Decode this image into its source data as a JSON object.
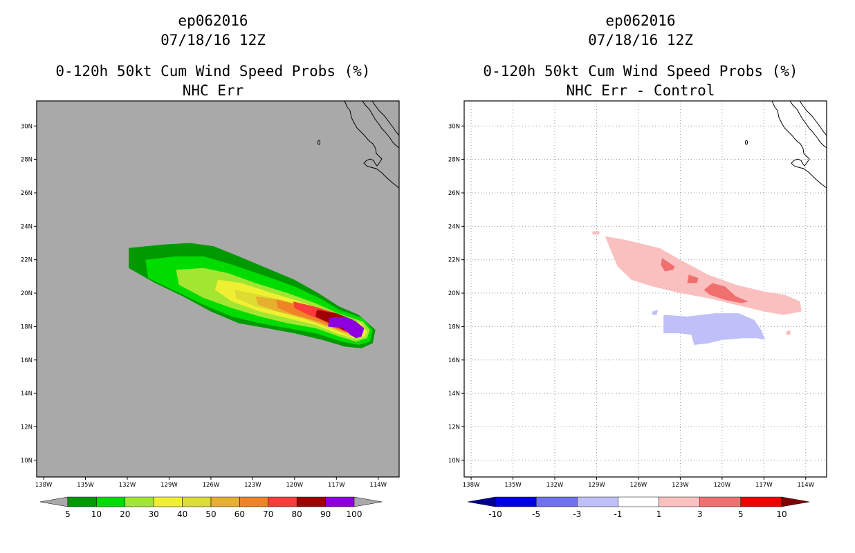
{
  "chart_data": [
    {
      "type": "filled-contour-map",
      "storm_id": "ep062016",
      "datetime": "07/18/16 12Z",
      "title": "0-120h 50kt Cum Wind Speed Probs (%)",
      "subtitle": "NHC Err",
      "xlim": [
        -138.5,
        -112.5
      ],
      "ylim": [
        9,
        31.5
      ],
      "x_ticks": [
        -138,
        -135,
        -132,
        -129,
        -126,
        -123,
        -120,
        -117,
        -114
      ],
      "x_tick_labels": [
        "138W",
        "135W",
        "132W",
        "129W",
        "126W",
        "123W",
        "120W",
        "117W",
        "114W"
      ],
      "y_ticks": [
        10,
        12,
        14,
        16,
        18,
        20,
        22,
        24,
        26,
        28,
        30
      ],
      "y_tick_labels": [
        "10N",
        "12N",
        "14N",
        "16N",
        "18N",
        "20N",
        "22N",
        "24N",
        "26N",
        "28N",
        "30N"
      ],
      "grid": false,
      "background_color": "#a9a9a9",
      "colorbar": {
        "levels": [
          "5",
          "10",
          "20",
          "30",
          "40",
          "50",
          "60",
          "70",
          "80",
          "90",
          "100"
        ],
        "colors": [
          "#009a00",
          "#00dc00",
          "#a2e632",
          "#f0f032",
          "#dcdc32",
          "#e6af2d",
          "#f08228",
          "#fa3c3c",
          "#a00000",
          "#8c00e0"
        ],
        "under_color": "#a9a9a9",
        "over_color": "#a9a9a9"
      },
      "contours": [
        {
          "level": 5,
          "color": "#009a00",
          "points": [
            [
              -131.9,
              22.7
            ],
            [
              -129.5,
              22.9
            ],
            [
              -127.5,
              23.0
            ],
            [
              -125.8,
              22.8
            ],
            [
              -124,
              22.2
            ],
            [
              -122,
              21.5
            ],
            [
              -120,
              20.8
            ],
            [
              -118.3,
              20.0
            ],
            [
              -116.8,
              19.2
            ],
            [
              -115.4,
              18.7
            ],
            [
              -114.2,
              17.8
            ],
            [
              -114.4,
              17.0
            ],
            [
              -115.2,
              16.7
            ],
            [
              -116.4,
              16.8
            ],
            [
              -118,
              17.2
            ],
            [
              -120,
              17.6
            ],
            [
              -122,
              17.9
            ],
            [
              -124,
              18.2
            ],
            [
              -126,
              18.9
            ],
            [
              -128,
              19.8
            ],
            [
              -130,
              20.6
            ],
            [
              -131.9,
              21.5
            ]
          ]
        },
        {
          "level": 10,
          "color": "#00dc00",
          "points": [
            [
              -130.7,
              22.0
            ],
            [
              -128.5,
              22.2
            ],
            [
              -126.5,
              22.2
            ],
            [
              -124.5,
              21.7
            ],
            [
              -122,
              21.0
            ],
            [
              -120,
              20.4
            ],
            [
              -118.2,
              19.7
            ],
            [
              -116.8,
              19.0
            ],
            [
              -115.1,
              18.5
            ],
            [
              -114.4,
              17.8
            ],
            [
              -114.6,
              17.1
            ],
            [
              -115.4,
              16.9
            ],
            [
              -116.6,
              17.1
            ],
            [
              -118.5,
              17.6
            ],
            [
              -120.5,
              17.9
            ],
            [
              -122.5,
              18.2
            ],
            [
              -124.5,
              18.6
            ],
            [
              -126.5,
              19.3
            ],
            [
              -128.5,
              20.1
            ],
            [
              -130.5,
              20.9
            ]
          ]
        },
        {
          "level": 20,
          "color": "#a2e632",
          "points": [
            [
              -128.5,
              21.4
            ],
            [
              -126.5,
              21.5
            ],
            [
              -124.8,
              21.2
            ],
            [
              -122.8,
              20.6
            ],
            [
              -120.5,
              20.0
            ],
            [
              -118.5,
              19.4
            ],
            [
              -116.9,
              18.8
            ],
            [
              -115.1,
              18.3
            ],
            [
              -114.6,
              17.8
            ],
            [
              -114.8,
              17.3
            ],
            [
              -115.6,
              17.1
            ],
            [
              -116.8,
              17.4
            ],
            [
              -118.5,
              17.9
            ],
            [
              -120.5,
              18.2
            ],
            [
              -122.5,
              18.6
            ],
            [
              -124.5,
              19.1
            ],
            [
              -126.5,
              19.7
            ],
            [
              -128.3,
              20.5
            ]
          ]
        },
        {
          "level": 30,
          "color": "#f0f032",
          "points": [
            [
              -125.5,
              20.8
            ],
            [
              -123.8,
              20.6
            ],
            [
              -122,
              20.1
            ],
            [
              -120,
              19.6
            ],
            [
              -118.3,
              19.1
            ],
            [
              -116.8,
              18.6
            ],
            [
              -115.2,
              18.2
            ],
            [
              -114.8,
              17.7
            ],
            [
              -115.0,
              17.4
            ],
            [
              -115.8,
              17.3
            ],
            [
              -117,
              17.6
            ],
            [
              -118.5,
              18.1
            ],
            [
              -120.5,
              18.5
            ],
            [
              -122.5,
              18.9
            ],
            [
              -124.5,
              19.5
            ],
            [
              -125.7,
              20.2
            ]
          ]
        },
        {
          "level": 40,
          "color": "#dcdc32",
          "points": [
            [
              -124.3,
              20.2
            ],
            [
              -122.5,
              19.9
            ],
            [
              -120.5,
              19.5
            ],
            [
              -118.8,
              19.1
            ],
            [
              -117.2,
              18.6
            ],
            [
              -115.4,
              18.2
            ],
            [
              -115.0,
              17.7
            ],
            [
              -115.2,
              17.5
            ],
            [
              -116,
              17.4
            ],
            [
              -117.2,
              17.8
            ],
            [
              -118.8,
              18.3
            ],
            [
              -120.8,
              18.8
            ],
            [
              -122.8,
              19.2
            ],
            [
              -124.2,
              19.7
            ]
          ]
        },
        {
          "level": 50,
          "color": "#e6af2d",
          "points": [
            [
              -122.8,
              19.8
            ],
            [
              -121,
              19.6
            ],
            [
              -119.3,
              19.2
            ],
            [
              -117.5,
              18.7
            ],
            [
              -115.5,
              18.2
            ],
            [
              -115.1,
              17.7
            ],
            [
              -115.4,
              17.5
            ],
            [
              -116.3,
              17.6
            ],
            [
              -117.6,
              18.0
            ],
            [
              -119.3,
              18.5
            ],
            [
              -121.2,
              18.9
            ],
            [
              -122.6,
              19.3
            ]
          ]
        },
        {
          "level": 60,
          "color": "#f08228",
          "points": [
            [
              -121.3,
              19.6
            ],
            [
              -119.8,
              19.3
            ],
            [
              -118.2,
              18.9
            ],
            [
              -116.2,
              18.4
            ],
            [
              -115.3,
              18.0
            ],
            [
              -115.2,
              17.6
            ],
            [
              -115.7,
              17.5
            ],
            [
              -116.8,
              17.8
            ],
            [
              -118.3,
              18.3
            ],
            [
              -120,
              18.7
            ],
            [
              -121.2,
              19.1
            ]
          ]
        },
        {
          "level": 70,
          "color": "#fa3c3c",
          "points": [
            [
              -120.1,
              19.5
            ],
            [
              -118.6,
              19.2
            ],
            [
              -117,
              18.8
            ],
            [
              -115.6,
              18.3
            ],
            [
              -115.2,
              17.8
            ],
            [
              -115.5,
              17.5
            ],
            [
              -116.4,
              17.7
            ],
            [
              -117.5,
              18.2
            ],
            [
              -119,
              18.7
            ],
            [
              -120,
              19.1
            ]
          ]
        },
        {
          "level": 80,
          "color": "#a00000",
          "points": [
            [
              -118.4,
              19.0
            ],
            [
              -117,
              18.8
            ],
            [
              -115.8,
              18.4
            ],
            [
              -115.3,
              17.9
            ],
            [
              -115.6,
              17.6
            ],
            [
              -116.5,
              17.8
            ],
            [
              -117.5,
              18.2
            ],
            [
              -118.5,
              18.6
            ]
          ]
        },
        {
          "level": 90,
          "color": "#8c00e0",
          "points": [
            [
              -117.5,
              18.5
            ],
            [
              -116.4,
              18.6
            ],
            [
              -115.6,
              18.3
            ],
            [
              -115.0,
              17.9
            ],
            [
              -115.2,
              17.4
            ],
            [
              -115.6,
              17.3
            ],
            [
              -116,
              17.5
            ],
            [
              -116.5,
              17.9
            ],
            [
              -117.6,
              18.0
            ]
          ]
        }
      ]
    },
    {
      "type": "filled-contour-map",
      "storm_id": "ep062016",
      "datetime": "07/18/16 12Z",
      "title": "0-120h 50kt Cum Wind Speed Probs (%)",
      "subtitle": "NHC Err - Control",
      "xlim": [
        -138.5,
        -112.5
      ],
      "ylim": [
        9,
        31.5
      ],
      "x_ticks": [
        -138,
        -135,
        -132,
        -129,
        -126,
        -123,
        -120,
        -117,
        -114
      ],
      "x_tick_labels": [
        "138W",
        "135W",
        "132W",
        "129W",
        "126W",
        "123W",
        "120W",
        "117W",
        "114W"
      ],
      "y_ticks": [
        10,
        12,
        14,
        16,
        18,
        20,
        22,
        24,
        26,
        28,
        30
      ],
      "y_tick_labels": [
        "10N",
        "12N",
        "14N",
        "16N",
        "18N",
        "20N",
        "22N",
        "24N",
        "26N",
        "28N",
        "30N"
      ],
      "grid": true,
      "background_color": "#ffffff",
      "colorbar": {
        "levels": [
          "-10",
          "-5",
          "-3",
          "-1",
          "1",
          "3",
          "5",
          "10"
        ],
        "colors": [
          "#0000e6",
          "#7070f0",
          "#c0c0f8",
          "#ffffff",
          "#fac0c0",
          "#f07070",
          "#f00000"
        ],
        "under_color": "#000090",
        "over_color": "#800000"
      },
      "contours": [
        {
          "level": 1,
          "color": "#fac0c0",
          "points": [
            [
              -128.4,
              23.4
            ],
            [
              -127,
              23.2
            ],
            [
              -125.5,
              22.9
            ],
            [
              -124.5,
              22.7
            ],
            [
              -123,
              22.0
            ],
            [
              -121,
              21.1
            ],
            [
              -119,
              20.5
            ],
            [
              -117,
              20.1
            ],
            [
              -115.5,
              19.9
            ],
            [
              -114.4,
              19.5
            ],
            [
              -114.3,
              18.9
            ],
            [
              -115.6,
              18.7
            ],
            [
              -117,
              18.9
            ],
            [
              -119,
              19.3
            ],
            [
              -121,
              19.7
            ],
            [
              -123,
              20.0
            ],
            [
              -125,
              20.4
            ],
            [
              -126.5,
              20.8
            ],
            [
              -127.5,
              21.6
            ]
          ]
        },
        {
          "level": 1,
          "color": "#fac0c0",
          "points": [
            [
              -129.3,
              23.7
            ],
            [
              -128.8,
              23.7
            ],
            [
              -128.8,
              23.5
            ],
            [
              -129.3,
              23.5
            ]
          ]
        },
        {
          "level": 1,
          "color": "#fac0c0",
          "points": [
            [
              -115.4,
              17.7
            ],
            [
              -115.1,
              17.8
            ],
            [
              -115.1,
              17.5
            ],
            [
              -115.4,
              17.5
            ]
          ]
        },
        {
          "level": 3,
          "color": "#f07070",
          "points": [
            [
              -124.3,
              22.1
            ],
            [
              -123.4,
              21.6
            ],
            [
              -123.5,
              21.4
            ],
            [
              -124.1,
              21.3
            ],
            [
              -124.4,
              21.7
            ]
          ]
        },
        {
          "level": 3,
          "color": "#f07070",
          "points": [
            [
              -122.4,
              21.1
            ],
            [
              -121.7,
              20.9
            ],
            [
              -121.8,
              20.6
            ],
            [
              -122.5,
              20.6
            ]
          ]
        },
        {
          "level": 3,
          "color": "#f07070",
          "points": [
            [
              -120.7,
              20.6
            ],
            [
              -119.8,
              20.4
            ],
            [
              -119.0,
              19.8
            ],
            [
              -118.1,
              19.5
            ],
            [
              -118.6,
              19.4
            ],
            [
              -119.8,
              19.6
            ],
            [
              -120.9,
              19.9
            ],
            [
              -121.3,
              20.2
            ]
          ]
        },
        {
          "level": -1,
          "color": "#c0c0f8",
          "points": [
            [
              -124.2,
              18.7
            ],
            [
              -122.5,
              18.6
            ],
            [
              -120.5,
              18.8
            ],
            [
              -118.8,
              18.8
            ],
            [
              -117.7,
              18.4
            ],
            [
              -117.2,
              17.8
            ],
            [
              -116.9,
              17.2
            ],
            [
              -117.5,
              17.3
            ],
            [
              -118.5,
              17.3
            ],
            [
              -120,
              17.2
            ],
            [
              -121,
              17.0
            ],
            [
              -122,
              16.9
            ],
            [
              -122.2,
              17.5
            ],
            [
              -123,
              17.6
            ],
            [
              -124.2,
              17.6
            ]
          ]
        },
        {
          "level": -1,
          "color": "#c0c0f8",
          "points": [
            [
              -125.0,
              18.9
            ],
            [
              -124.6,
              19.0
            ],
            [
              -124.7,
              18.7
            ],
            [
              -125.0,
              18.7
            ]
          ]
        }
      ]
    }
  ]
}
